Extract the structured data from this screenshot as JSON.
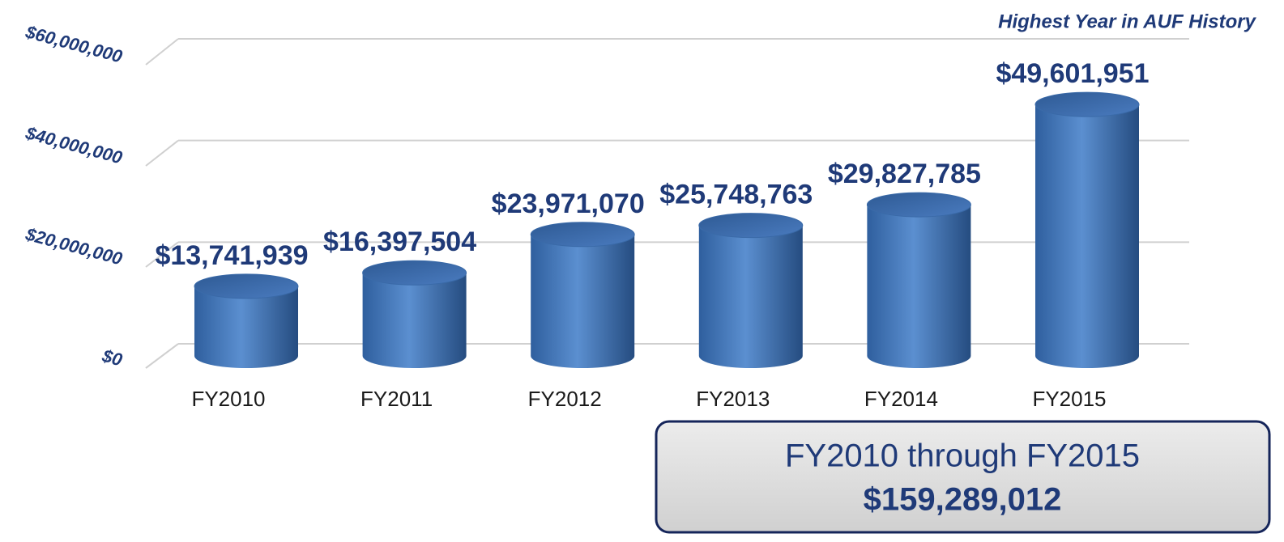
{
  "chart_data": {
    "type": "bar",
    "annotation": "Highest Year in AUF History",
    "categories": [
      "FY2010",
      "FY2011",
      "FY2012",
      "FY2013",
      "FY2014",
      "FY2015"
    ],
    "values": [
      13741939,
      16397504,
      23971070,
      25748763,
      29827785,
      49601951
    ],
    "value_labels": [
      "$13,741,939",
      "$16,397,504",
      "$23,971,070",
      "$25,748,763",
      "$29,827,785",
      "$49,601,951"
    ],
    "color": "#4f81bd",
    "ylim": [
      0,
      60000000
    ],
    "yticks": [
      {
        "value": 0,
        "label": "$0"
      },
      {
        "value": 20000000,
        "label": "$20,000,000"
      },
      {
        "value": 40000000,
        "label": "$40,000,000"
      },
      {
        "value": 60000000,
        "label": "$60,000,000"
      }
    ],
    "grid": true,
    "summary": {
      "label": "FY2010 through FY2015",
      "total": "$159,289,012"
    }
  }
}
